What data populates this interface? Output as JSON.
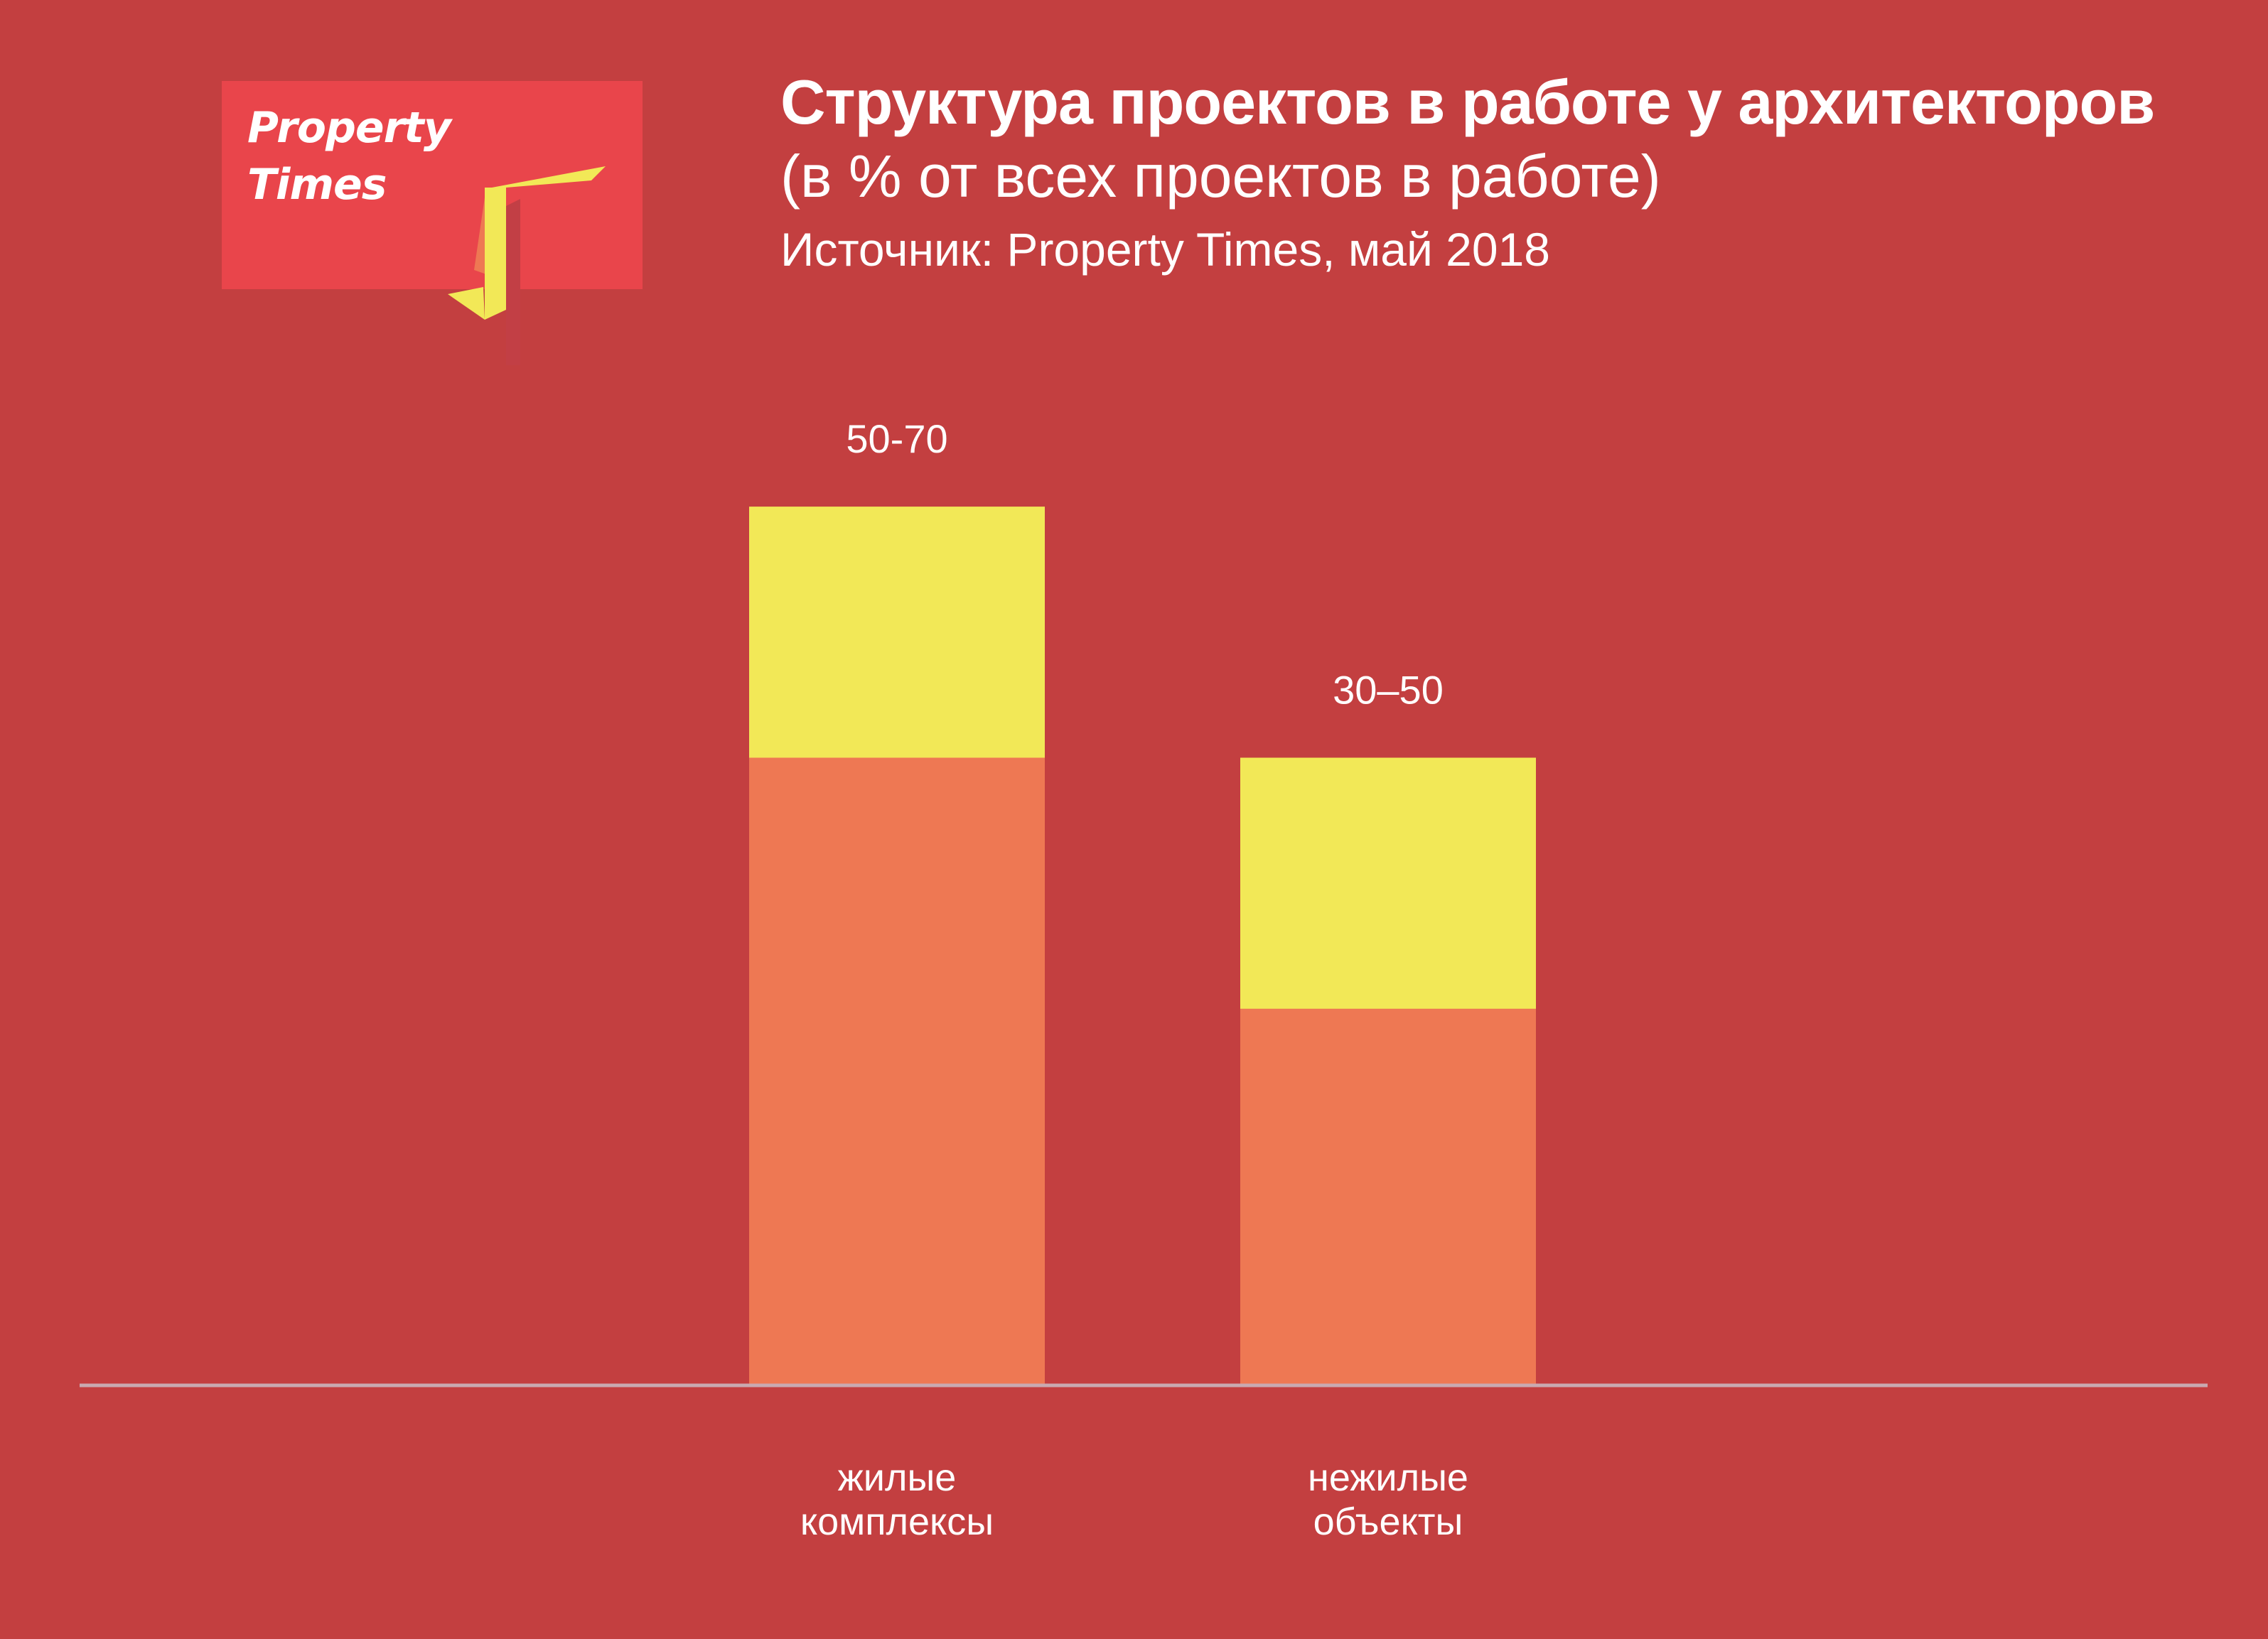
{
  "header": {
    "title": "Структура проектов в работе у архитекторов",
    "subtitle": "(в % от всех проектов в работе)",
    "source": "Источник: Property Times, май 2018"
  },
  "logo": {
    "line1": "Property",
    "line2": "Times"
  },
  "colors": {
    "background": "#C33F40",
    "base_segment": "#EE7853",
    "range_segment": "#F2E857",
    "axis": "#C9A9B0",
    "text": "#FFFFFF",
    "logo_box": "#E9454B"
  },
  "chart_data": {
    "type": "bar",
    "stacked": true,
    "title": "Структура проектов в работе у архитекторов",
    "subtitle": "(в % от всех проектов в работе)",
    "categories": [
      [
        "жилые",
        "комплексы"
      ],
      [
        "нежилые",
        "объекты"
      ]
    ],
    "series": [
      {
        "values": [
          50,
          30
        ],
        "color": "#EE7853"
      },
      {
        "values": [
          20,
          20
        ],
        "color": "#F2E857"
      }
    ],
    "data_labels": [
      "50-70",
      "30–50"
    ],
    "ylim": [
      0,
      100
    ],
    "grid": false,
    "legend": "none"
  }
}
